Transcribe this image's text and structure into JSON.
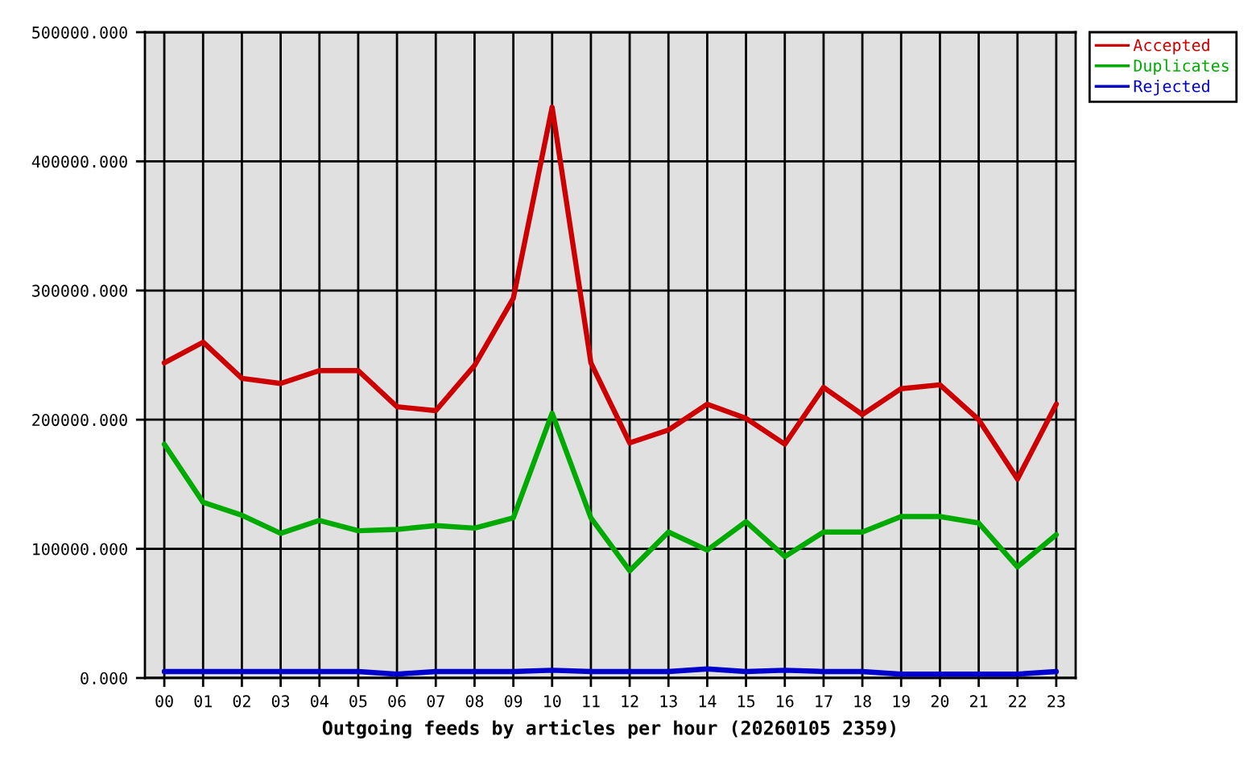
{
  "chart_data": {
    "type": "line",
    "xlabel": "Outgoing feeds by articles per hour (20260105 2359)",
    "categories": [
      "00",
      "01",
      "02",
      "03",
      "04",
      "05",
      "06",
      "07",
      "08",
      "09",
      "10",
      "11",
      "12",
      "13",
      "14",
      "15",
      "16",
      "17",
      "18",
      "19",
      "20",
      "21",
      "22",
      "23"
    ],
    "series": [
      {
        "name": "Accepted",
        "color": "#cc0000",
        "values": [
          244000,
          260000,
          232000,
          228000,
          238000,
          238000,
          210000,
          207000,
          242000,
          294000,
          442000,
          244000,
          182000,
          192000,
          212000,
          201000,
          181000,
          225000,
          204000,
          224000,
          227000,
          200000,
          154000,
          212000
        ]
      },
      {
        "name": "Duplicates",
        "color": "#00aa00",
        "values": [
          181000,
          136000,
          126000,
          112000,
          122000,
          114000,
          115000,
          118000,
          116000,
          124000,
          205000,
          124000,
          83000,
          113000,
          99000,
          121000,
          94000,
          113000,
          113000,
          125000,
          125000,
          120000,
          86000,
          111000
        ]
      },
      {
        "name": "Rejected",
        "color": "#0000cc",
        "values": [
          5000,
          5000,
          5000,
          5000,
          5000,
          5000,
          3000,
          5000,
          5000,
          5000,
          6000,
          5000,
          5000,
          5000,
          7000,
          5000,
          6000,
          5000,
          5000,
          3000,
          3000,
          3000,
          3000,
          5000
        ]
      }
    ],
    "ylim": [
      0,
      500000
    ],
    "yticks": [
      {
        "value": 0,
        "label": "0.000"
      },
      {
        "value": 100000,
        "label": "100000.000"
      },
      {
        "value": 200000,
        "label": "200000.000"
      },
      {
        "value": 300000,
        "label": "300000.000"
      },
      {
        "value": 400000,
        "label": "400000.000"
      },
      {
        "value": 500000,
        "label": "500000.000"
      }
    ],
    "grid": true,
    "legend": "top right",
    "line_style": "solid"
  }
}
